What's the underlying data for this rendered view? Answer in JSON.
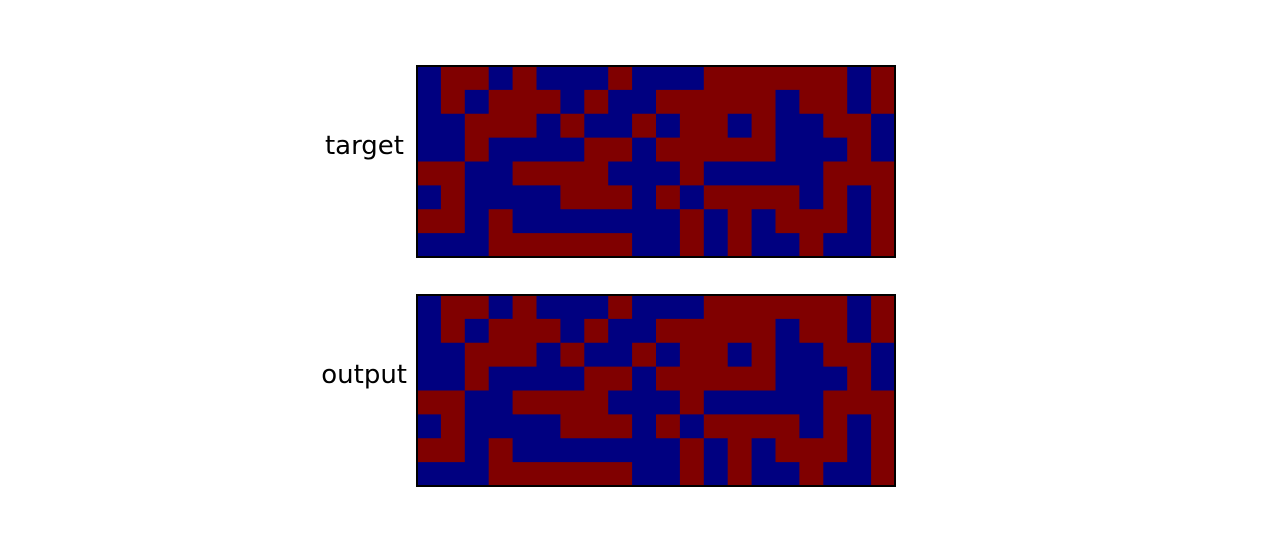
{
  "chart_data": [
    {
      "type": "heatmap",
      "ylabel": "target",
      "rows": 8,
      "cols": 20,
      "colors": {
        "0": "#000080",
        "1": "#800000"
      },
      "grid": false,
      "matrix": [
        [
          0,
          1,
          1,
          0,
          1,
          0,
          0,
          0,
          1,
          0,
          0,
          0,
          1,
          1,
          1,
          1,
          1,
          1,
          0,
          1
        ],
        [
          0,
          1,
          0,
          1,
          1,
          1,
          0,
          1,
          0,
          0,
          1,
          1,
          1,
          1,
          1,
          0,
          1,
          1,
          0,
          1
        ],
        [
          0,
          0,
          1,
          1,
          1,
          0,
          1,
          0,
          0,
          1,
          0,
          1,
          1,
          0,
          1,
          0,
          0,
          1,
          1,
          0
        ],
        [
          0,
          0,
          1,
          0,
          0,
          0,
          0,
          1,
          1,
          0,
          1,
          1,
          1,
          1,
          1,
          0,
          0,
          0,
          1,
          0
        ],
        [
          1,
          1,
          0,
          0,
          1,
          1,
          1,
          1,
          0,
          0,
          0,
          1,
          0,
          0,
          0,
          0,
          0,
          1,
          1,
          1
        ],
        [
          0,
          1,
          0,
          0,
          0,
          0,
          1,
          1,
          1,
          0,
          1,
          0,
          1,
          1,
          1,
          1,
          0,
          1,
          0,
          1
        ],
        [
          1,
          1,
          0,
          1,
          0,
          0,
          0,
          0,
          0,
          0,
          0,
          1,
          0,
          1,
          0,
          1,
          1,
          1,
          0,
          1
        ],
        [
          0,
          0,
          0,
          1,
          1,
          1,
          1,
          1,
          1,
          0,
          0,
          1,
          0,
          1,
          0,
          0,
          1,
          0,
          0,
          1
        ]
      ]
    },
    {
      "type": "heatmap",
      "ylabel": "output",
      "rows": 8,
      "cols": 20,
      "colors": {
        "0": "#000080",
        "1": "#800000"
      },
      "grid": false,
      "matrix": [
        [
          0,
          1,
          1,
          0,
          1,
          0,
          0,
          0,
          1,
          0,
          0,
          0,
          1,
          1,
          1,
          1,
          1,
          1,
          0,
          1
        ],
        [
          0,
          1,
          0,
          1,
          1,
          1,
          0,
          1,
          0,
          0,
          1,
          1,
          1,
          1,
          1,
          0,
          1,
          1,
          0,
          1
        ],
        [
          0,
          0,
          1,
          1,
          1,
          0,
          1,
          0,
          0,
          1,
          0,
          1,
          1,
          0,
          1,
          0,
          0,
          1,
          1,
          0
        ],
        [
          0,
          0,
          1,
          0,
          0,
          0,
          0,
          1,
          1,
          0,
          1,
          1,
          1,
          1,
          1,
          0,
          0,
          0,
          1,
          0
        ],
        [
          1,
          1,
          0,
          0,
          1,
          1,
          1,
          1,
          0,
          0,
          0,
          1,
          0,
          0,
          0,
          0,
          0,
          1,
          1,
          1
        ],
        [
          0,
          1,
          0,
          0,
          0,
          0,
          1,
          1,
          1,
          0,
          1,
          0,
          1,
          1,
          1,
          1,
          0,
          1,
          0,
          1
        ],
        [
          1,
          1,
          0,
          1,
          0,
          0,
          0,
          0,
          0,
          0,
          0,
          1,
          0,
          1,
          0,
          1,
          1,
          1,
          0,
          1
        ],
        [
          0,
          0,
          0,
          1,
          1,
          1,
          1,
          1,
          1,
          0,
          0,
          1,
          0,
          1,
          0,
          0,
          1,
          0,
          0,
          1
        ]
      ]
    }
  ]
}
